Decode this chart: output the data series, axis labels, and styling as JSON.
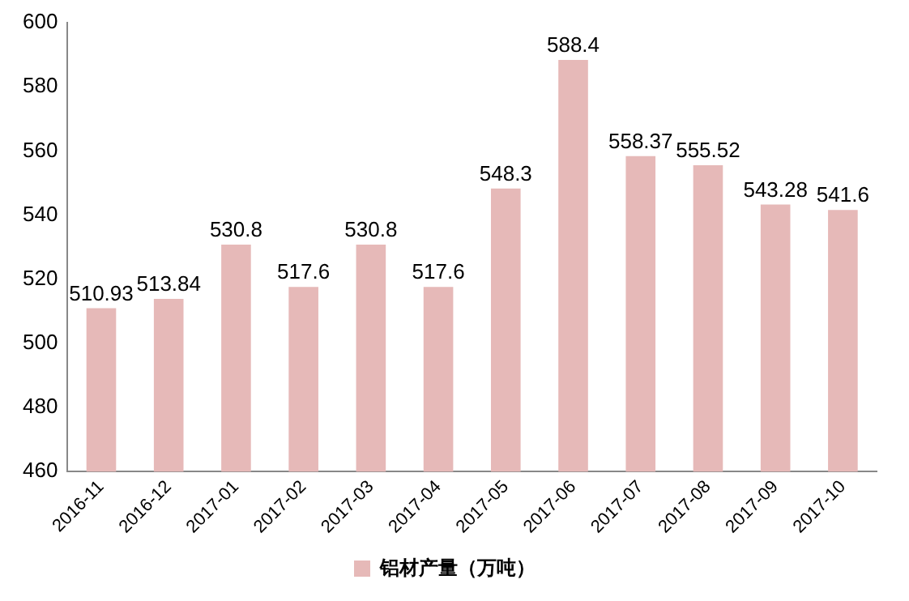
{
  "chart_data": {
    "type": "bar",
    "categories": [
      "2016-11",
      "2016-12",
      "2017-01",
      "2017-02",
      "2017-03",
      "2017-04",
      "2017-05",
      "2017-06",
      "2017-07",
      "2017-08",
      "2017-09",
      "2017-10"
    ],
    "series": [
      {
        "name": "铝材产量（万吨）",
        "color": "#e6b9b8",
        "values": [
          510.93,
          513.84,
          530.8,
          517.6,
          530.8,
          517.6,
          548.3,
          588.4,
          558.37,
          555.52,
          543.28,
          541.6
        ]
      }
    ],
    "ylim": [
      460,
      600
    ],
    "yticks": [
      460,
      480,
      500,
      520,
      540,
      560,
      580,
      600
    ],
    "data_labels": true,
    "legend": "bottom",
    "grid": false
  }
}
